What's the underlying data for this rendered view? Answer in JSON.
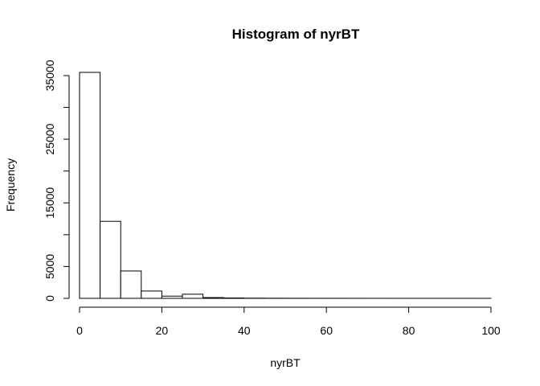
{
  "chart_data": {
    "type": "bar",
    "title": "Histogram of nyrBT",
    "xlabel": "nyrBT",
    "ylabel": "Frequency",
    "bin_width": 5,
    "bins": [
      {
        "from": 0,
        "to": 5,
        "count": 35500
      },
      {
        "from": 5,
        "to": 10,
        "count": 12100
      },
      {
        "from": 10,
        "to": 15,
        "count": 4300
      },
      {
        "from": 15,
        "to": 20,
        "count": 1150
      },
      {
        "from": 20,
        "to": 25,
        "count": 350
      },
      {
        "from": 25,
        "to": 30,
        "count": 650
      },
      {
        "from": 30,
        "to": 35,
        "count": 120
      },
      {
        "from": 35,
        "to": 40,
        "count": 60
      },
      {
        "from": 40,
        "to": 45,
        "count": 30
      },
      {
        "from": 45,
        "to": 50,
        "count": 20
      },
      {
        "from": 50,
        "to": 55,
        "count": 15
      },
      {
        "from": 55,
        "to": 60,
        "count": 10
      },
      {
        "from": 60,
        "to": 65,
        "count": 8
      },
      {
        "from": 65,
        "to": 70,
        "count": 6
      },
      {
        "from": 70,
        "to": 75,
        "count": 5
      },
      {
        "from": 75,
        "to": 80,
        "count": 4
      },
      {
        "from": 80,
        "to": 85,
        "count": 3
      },
      {
        "from": 85,
        "to": 90,
        "count": 2
      },
      {
        "from": 90,
        "to": 95,
        "count": 2
      },
      {
        "from": 95,
        "to": 100,
        "count": 1
      }
    ],
    "xlim": [
      0,
      100
    ],
    "ylim": [
      0,
      35500
    ],
    "xticks": [
      0,
      20,
      40,
      60,
      80,
      100
    ],
    "xtick_labels": [
      "0",
      "20",
      "40",
      "60",
      "80",
      "100"
    ],
    "yticks": [
      0,
      5000,
      15000,
      25000,
      35000
    ],
    "ytick_labels": [
      "0",
      "5000",
      "15000",
      "25000",
      "35000"
    ],
    "ytick_marks": [
      0,
      5000,
      10000,
      15000,
      20000,
      25000,
      30000,
      35000
    ],
    "grid": false,
    "bar_fill": "#ffffff",
    "bar_stroke": "#000000"
  }
}
